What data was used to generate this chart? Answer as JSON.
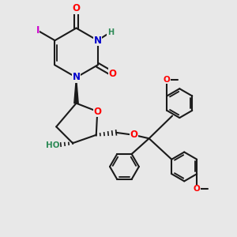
{
  "bg_color": "#e8e8e8",
  "line_color": "#1a1a1a",
  "line_width": 1.5,
  "atom_colors": {
    "O": "#ff0000",
    "N": "#0000cc",
    "I": "#cc00cc",
    "H_label": "#2e8b57",
    "C": "#1a1a1a"
  },
  "font_size_atoms": 8.5,
  "font_size_small": 7.0
}
